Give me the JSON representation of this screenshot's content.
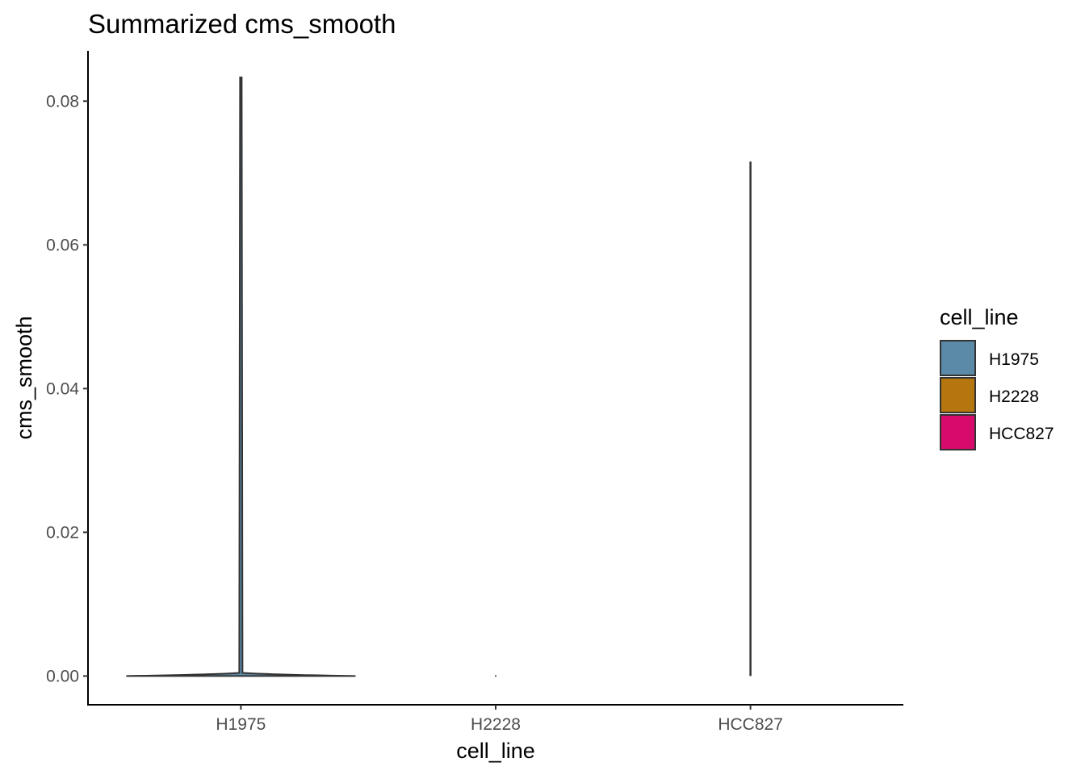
{
  "chart_data": {
    "type": "violin",
    "title": "Summarized cms_smooth",
    "xlabel": "cell_line",
    "ylabel": "cms_smooth",
    "categories": [
      "H1975",
      "H2228",
      "HCC827"
    ],
    "ylim": [
      -0.004,
      0.087
    ],
    "yticks": [
      0.0,
      0.02,
      0.04,
      0.06,
      0.08
    ],
    "ytick_labels": [
      "0.00",
      "0.02",
      "0.04",
      "0.06",
      "0.08"
    ],
    "grid": false,
    "legend_position": "right",
    "legend_title": "cell_line",
    "series": [
      {
        "name": "H1975",
        "color": "#5b8aa9",
        "min": 0.0,
        "max": 0.0833,
        "density_peak": 0.0
      },
      {
        "name": "H2228",
        "color": "#b5760f",
        "min": 0.0,
        "max": 0.0,
        "density_peak": 0.0
      },
      {
        "name": "HCC827",
        "color": "#d80a6c",
        "min": 0.0,
        "max": 0.0716,
        "density_peak": 0.0
      }
    ]
  }
}
